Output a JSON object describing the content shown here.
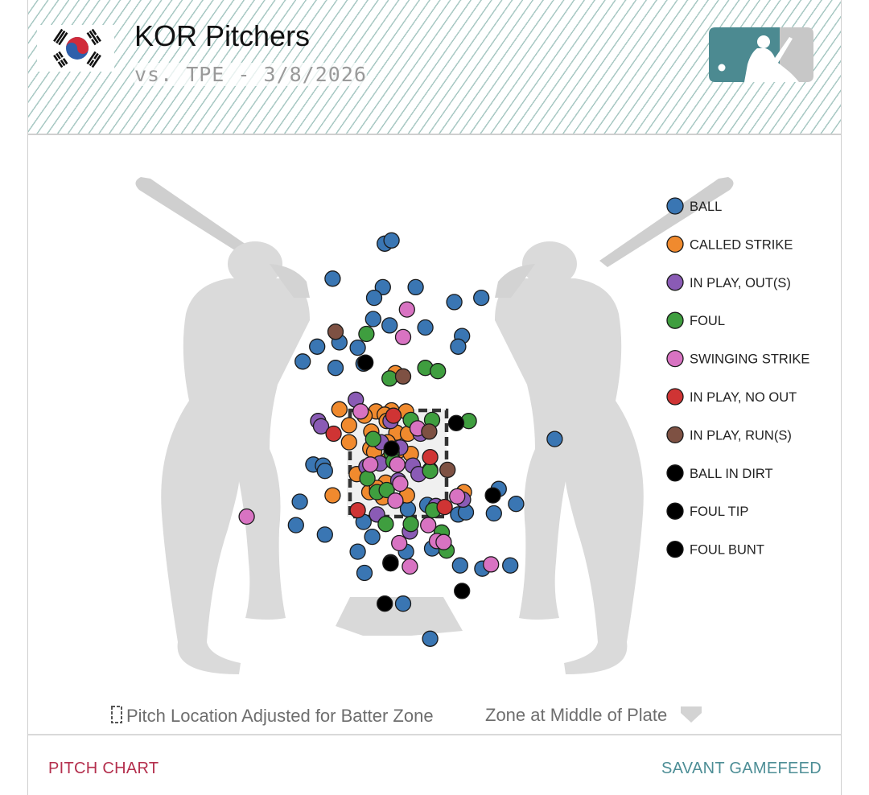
{
  "header": {
    "title": "KOR Pitchers",
    "subtitle": "vs. TPE - 3/8/2026",
    "flag_icon": "south-korea-flag-icon",
    "logo_icon": "mlb-logo-icon"
  },
  "chart_data": {
    "type": "scatter",
    "title": "",
    "xlabel": "",
    "ylabel": "",
    "units": "relative strike-zone widths (x: 0 = left edge, 1 = right edge; y: 0 = bottom edge, 1 = top edge)",
    "legend": {
      "placement": "right",
      "entries": [
        {
          "key": "ball",
          "label": "BALL",
          "color": "#3a76b3"
        },
        {
          "key": "called_strike",
          "label": "CALLED STRIKE",
          "color": "#f08a2e"
        },
        {
          "key": "in_play_out",
          "label": "IN PLAY, OUT(S)",
          "color": "#8a5bb5"
        },
        {
          "key": "foul",
          "label": "FOUL",
          "color": "#3f9e3f"
        },
        {
          "key": "swinging_strike",
          "label": "SWINGING STRIKE",
          "color": "#d873c2"
        },
        {
          "key": "in_play_no_out",
          "label": "IN PLAY, NO OUT",
          "color": "#cf3434"
        },
        {
          "key": "in_play_runs",
          "label": "IN PLAY, RUN(S)",
          "color": "#7e5143"
        },
        {
          "key": "ball_in_dirt",
          "label": "BALL IN DIRT",
          "color": "#000000"
        },
        {
          "key": "foul_tip",
          "label": "FOUL TIP",
          "color": "#000000"
        },
        {
          "key": "foul_bunt",
          "label": "FOUL BUNT",
          "color": "#000000"
        }
      ]
    },
    "series": [
      {
        "name": "BALL",
        "color": "#3a76b3",
        "points": [
          [
            0.36,
            2.57
          ],
          [
            0.43,
            2.6
          ],
          [
            -0.18,
            2.24
          ],
          [
            0.34,
            2.16
          ],
          [
            0.68,
            2.16
          ],
          [
            0.25,
            2.06
          ],
          [
            1.08,
            2.02
          ],
          [
            1.36,
            2.06
          ],
          [
            0.24,
            1.86
          ],
          [
            0.41,
            1.8
          ],
          [
            0.78,
            1.78
          ],
          [
            1.16,
            1.7
          ],
          [
            -0.34,
            1.6
          ],
          [
            -0.11,
            1.64
          ],
          [
            0.08,
            1.59
          ],
          [
            1.12,
            1.6
          ],
          [
            -0.49,
            1.46
          ],
          [
            -0.15,
            1.4
          ],
          [
            0.14,
            1.44
          ],
          [
            -0.38,
            0.49
          ],
          [
            -0.28,
            0.48
          ],
          [
            -0.26,
            0.43
          ],
          [
            1.54,
            0.26
          ],
          [
            2.12,
            0.73
          ],
          [
            -0.52,
            0.14
          ],
          [
            1.72,
            0.12
          ],
          [
            1.49,
            0.03
          ],
          [
            0.6,
            0.07
          ],
          [
            0.8,
            0.11
          ],
          [
            1.12,
            0.02
          ],
          [
            1.2,
            0.04
          ],
          [
            -0.56,
            -0.08
          ],
          [
            -0.26,
            -0.17
          ],
          [
            0.14,
            -0.05
          ],
          [
            0.23,
            -0.19
          ],
          [
            0.58,
            -0.33
          ],
          [
            0.85,
            -0.3
          ],
          [
            0.08,
            -0.33
          ],
          [
            0.42,
            -0.44
          ],
          [
            1.14,
            -0.46
          ],
          [
            1.37,
            -0.49
          ],
          [
            1.66,
            -0.46
          ],
          [
            0.15,
            -0.53
          ],
          [
            0.55,
            -0.82
          ],
          [
            0.83,
            -1.15
          ]
        ]
      },
      {
        "name": "CALLED STRIKE",
        "color": "#f08a2e",
        "points": [
          [
            0.47,
            1.35
          ],
          [
            -0.11,
            1.01
          ],
          [
            0.27,
            0.99
          ],
          [
            0.43,
            1.0
          ],
          [
            0.36,
            0.96
          ],
          [
            0.38,
            0.9
          ],
          [
            0.48,
            0.79
          ],
          [
            0.22,
            0.8
          ],
          [
            0.6,
            0.78
          ],
          [
            -0.01,
            0.86
          ],
          [
            0.21,
            0.64
          ],
          [
            0.5,
            0.62
          ],
          [
            0.63,
            0.59
          ],
          [
            0.4,
            0.54
          ],
          [
            0.37,
            0.32
          ],
          [
            0.2,
            0.23
          ],
          [
            0.34,
            0.18
          ],
          [
            0.59,
            0.2
          ],
          [
            0.28,
            0.27
          ],
          [
            1.18,
            0.23
          ],
          [
            0.07,
            0.4
          ],
          [
            0.25,
            0.61
          ],
          [
            -0.18,
            0.2
          ],
          [
            0.39,
            0.7
          ],
          [
            0.15,
            0.95
          ],
          [
            -0.01,
            0.7
          ],
          [
            0.58,
            0.99
          ]
        ]
      },
      {
        "name": "IN PLAY, OUT(S)",
        "color": "#8a5bb5",
        "points": [
          [
            0.06,
            1.1
          ],
          [
            -0.33,
            0.9
          ],
          [
            -0.3,
            0.85
          ],
          [
            0.32,
            0.7
          ],
          [
            0.52,
            0.65
          ],
          [
            0.17,
            0.47
          ],
          [
            0.65,
            0.48
          ],
          [
            0.83,
            0.44
          ],
          [
            0.71,
            0.4
          ],
          [
            0.5,
            0.34
          ],
          [
            0.89,
            0.1
          ],
          [
            0.28,
            0.02
          ],
          [
            0.62,
            -0.14
          ],
          [
            1.17,
            0.16
          ],
          [
            0.42,
            0.9
          ],
          [
            0.73,
            0.78
          ],
          [
            0.31,
            0.5
          ]
        ]
      },
      {
        "name": "FOUL",
        "color": "#3f9e3f",
        "points": [
          [
            0.17,
            1.72
          ],
          [
            0.78,
            1.4
          ],
          [
            0.91,
            1.37
          ],
          [
            0.41,
            1.3
          ],
          [
            0.63,
            0.91
          ],
          [
            0.85,
            0.91
          ],
          [
            1.23,
            0.9
          ],
          [
            0.24,
            0.73
          ],
          [
            0.43,
            0.6
          ],
          [
            0.45,
            0.52
          ],
          [
            0.83,
            0.43
          ],
          [
            0.28,
            0.23
          ],
          [
            0.38,
            0.25
          ],
          [
            0.86,
            0.06
          ],
          [
            0.37,
            -0.07
          ],
          [
            0.63,
            -0.07
          ],
          [
            0.95,
            -0.15
          ],
          [
            1.0,
            -0.32
          ],
          [
            0.18,
            0.36
          ]
        ]
      },
      {
        "name": "SWINGING STRIKE",
        "color": "#d873c2",
        "points": [
          [
            0.59,
            1.95
          ],
          [
            0.55,
            1.69
          ],
          [
            0.49,
            0.49
          ],
          [
            0.52,
            0.31
          ],
          [
            0.47,
            0.15
          ],
          [
            0.81,
            -0.08
          ],
          [
            0.51,
            -0.25
          ],
          [
            0.9,
            -0.23
          ],
          [
            0.97,
            -0.24
          ],
          [
            0.62,
            -0.47
          ],
          [
            1.46,
            -0.45
          ],
          [
            -1.07,
            0.0
          ],
          [
            1.11,
            0.19
          ],
          [
            0.7,
            0.83
          ],
          [
            0.21,
            0.49
          ],
          [
            0.11,
            0.99
          ]
        ]
      },
      {
        "name": "IN PLAY, NO OUT",
        "color": "#cf3434",
        "points": [
          [
            -0.17,
            0.78
          ],
          [
            0.08,
            0.06
          ],
          [
            0.83,
            0.56
          ],
          [
            0.45,
            0.95
          ],
          [
            0.98,
            0.09
          ]
        ]
      },
      {
        "name": "IN PLAY, RUN(S)",
        "color": "#7e5143",
        "points": [
          [
            -0.15,
            1.74
          ],
          [
            0.82,
            0.8
          ],
          [
            1.01,
            0.44
          ],
          [
            0.55,
            1.32
          ]
        ]
      },
      {
        "name": "BALL IN DIRT",
        "color": "#000000",
        "points": [
          [
            0.16,
            1.45
          ],
          [
            1.1,
            0.88
          ],
          [
            0.42,
            -0.43
          ],
          [
            0.42,
            -0.44
          ],
          [
            1.16,
            -0.7
          ],
          [
            1.48,
            0.2
          ],
          [
            0.36,
            -0.82
          ]
        ]
      },
      {
        "name": "FOUL TIP",
        "color": "#000000",
        "points": [
          [
            0.43,
            0.64
          ]
        ]
      }
    ]
  },
  "zone_legend": {
    "adjusted_label": "Pitch Location Adjusted for Batter Zone",
    "middle_label": "Zone at Middle of Plate"
  },
  "footer": {
    "left_link": "PITCH CHART",
    "right_link": "SAVANT GAMEFEED"
  }
}
